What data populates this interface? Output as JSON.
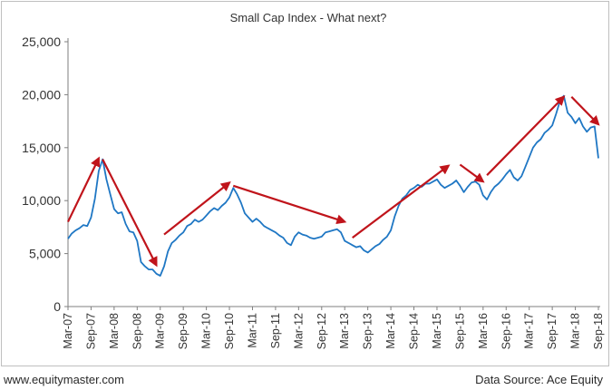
{
  "footer": {
    "website": "www.equitymaster.com",
    "source": "Data Source: Ace Equity"
  },
  "colors": {
    "line": "#1f77c4",
    "arrow": "#c0141b",
    "axis": "#7f7f7f",
    "text": "#333333"
  },
  "chart_data": {
    "type": "line",
    "title": "Small Cap Index - What next?",
    "xlabel": "",
    "ylabel": "",
    "ylim": [
      0,
      25000
    ],
    "yticks": [
      0,
      5000,
      10000,
      15000,
      20000,
      25000
    ],
    "ytick_labels": [
      "0",
      "5,000",
      "10,000",
      "15,000",
      "20,000",
      "25,000"
    ],
    "grid": false,
    "legend": "none",
    "xtick_labels": [
      "Mar-07",
      "Sep-07",
      "Mar-08",
      "Sep-08",
      "Mar-09",
      "Sep-09",
      "Mar-10",
      "Sep-10",
      "Mar-11",
      "Sep-11",
      "Mar-12",
      "Sep-12",
      "Mar-13",
      "Sep-13",
      "Mar-14",
      "Sep-14",
      "Mar-15",
      "Sep-15",
      "Mar-16",
      "Sep-16",
      "Mar-17",
      "Sep-17",
      "Mar-18",
      "Sep-18"
    ],
    "series": [
      {
        "x": [
          "Mar-07",
          "Apr-07",
          "May-07",
          "Jun-07",
          "Jul-07",
          "Aug-07",
          "Sep-07",
          "Oct-07",
          "Nov-07",
          "Dec-07",
          "Jan-08",
          "Feb-08",
          "Mar-08",
          "Apr-08",
          "May-08",
          "Jun-08",
          "Jul-08",
          "Aug-08",
          "Sep-08",
          "Oct-08",
          "Nov-08",
          "Dec-08",
          "Jan-09",
          "Feb-09",
          "Mar-09",
          "Apr-09",
          "May-09",
          "Jun-09",
          "Jul-09",
          "Aug-09",
          "Sep-09",
          "Oct-09",
          "Nov-09",
          "Dec-09",
          "Jan-10",
          "Feb-10",
          "Mar-10",
          "Apr-10",
          "May-10",
          "Jun-10",
          "Jul-10",
          "Aug-10",
          "Sep-10",
          "Oct-10",
          "Nov-10",
          "Dec-10",
          "Jan-11",
          "Feb-11",
          "Mar-11",
          "Apr-11",
          "May-11",
          "Jun-11",
          "Jul-11",
          "Aug-11",
          "Sep-11",
          "Oct-11",
          "Nov-11",
          "Dec-11",
          "Jan-12",
          "Feb-12",
          "Mar-12",
          "Apr-12",
          "May-12",
          "Jun-12",
          "Jul-12",
          "Aug-12",
          "Sep-12",
          "Oct-12",
          "Nov-12",
          "Dec-12",
          "Jan-13",
          "Feb-13",
          "Mar-13",
          "Apr-13",
          "May-13",
          "Jun-13",
          "Jul-13",
          "Aug-13",
          "Sep-13",
          "Oct-13",
          "Nov-13",
          "Dec-13",
          "Jan-14",
          "Feb-14",
          "Mar-14",
          "Apr-14",
          "May-14",
          "Jun-14",
          "Jul-14",
          "Aug-14",
          "Sep-14",
          "Oct-14",
          "Nov-14",
          "Dec-14",
          "Jan-15",
          "Feb-15",
          "Mar-15",
          "Apr-15",
          "May-15",
          "Jun-15",
          "Jul-15",
          "Aug-15",
          "Sep-15",
          "Oct-15",
          "Nov-15",
          "Dec-15",
          "Jan-16",
          "Feb-16",
          "Mar-16",
          "Apr-16",
          "May-16",
          "Jun-16",
          "Jul-16",
          "Aug-16",
          "Sep-16",
          "Oct-16",
          "Nov-16",
          "Dec-16",
          "Jan-17",
          "Feb-17",
          "Mar-17",
          "Apr-17",
          "May-17",
          "Jun-17",
          "Jul-17",
          "Aug-17",
          "Sep-17",
          "Oct-17",
          "Nov-17",
          "Dec-17",
          "Jan-18",
          "Feb-18",
          "Mar-18",
          "Apr-18",
          "May-18",
          "Jun-18",
          "Jul-18",
          "Aug-18",
          "Sep-18"
        ],
        "values": [
          6400,
          6900,
          7200,
          7400,
          7700,
          7600,
          8400,
          10200,
          12800,
          13900,
          12000,
          10600,
          9200,
          8800,
          8900,
          7800,
          7100,
          7000,
          6200,
          4200,
          3800,
          3500,
          3500,
          3100,
          2900,
          3800,
          5200,
          6000,
          6300,
          6700,
          7000,
          7600,
          7800,
          8200,
          8000,
          8200,
          8600,
          9000,
          9300,
          9100,
          9500,
          9800,
          10300,
          11200,
          10600,
          9800,
          8800,
          8400,
          8000,
          8300,
          8000,
          7600,
          7400,
          7200,
          7000,
          6700,
          6500,
          6000,
          5800,
          6600,
          7000,
          6800,
          6700,
          6500,
          6400,
          6500,
          6600,
          7000,
          7100,
          7200,
          7300,
          7000,
          6200,
          6000,
          5800,
          5600,
          5700,
          5300,
          5100,
          5400,
          5700,
          5900,
          6300,
          6600,
          7200,
          8500,
          9500,
          10200,
          10500,
          11000,
          11200,
          11500,
          11300,
          11600,
          11600,
          11800,
          12000,
          11500,
          11200,
          11400,
          11600,
          11900,
          11400,
          10800,
          11300,
          11700,
          11800,
          11500,
          10500,
          10100,
          10800,
          11300,
          11600,
          12000,
          12500,
          12900,
          12200,
          11900,
          12300,
          13200,
          14100,
          15000,
          15500,
          15800,
          16400,
          16700,
          17100,
          18200,
          19400,
          19900,
          18300,
          17900,
          17300,
          17800,
          17000,
          16500,
          16900,
          17000,
          14000
        ]
      }
    ],
    "trend_arrows": [
      {
        "from": [
          "Mar-07",
          8000
        ],
        "to": [
          "Nov-07",
          14000
        ]
      },
      {
        "from": [
          "Dec-07",
          13900
        ],
        "to": [
          "Feb-09",
          3900
        ]
      },
      {
        "from": [
          "Apr-09",
          6800
        ],
        "to": [
          "Sep-10",
          11700
        ]
      },
      {
        "from": [
          "Oct-10",
          11400
        ],
        "to": [
          "Mar-13",
          8000
        ]
      },
      {
        "from": [
          "May-13",
          6500
        ],
        "to": [
          "Jun-15",
          13300
        ]
      },
      {
        "from": [
          "Sep-15",
          13400
        ],
        "to": [
          "Mar-16",
          11800
        ]
      },
      {
        "from": [
          "Apr-16",
          12400
        ],
        "to": [
          "Dec-17",
          19800
        ]
      },
      {
        "from": [
          "Feb-18",
          19800
        ],
        "to": [
          "Sep-18",
          17200
        ]
      }
    ]
  }
}
